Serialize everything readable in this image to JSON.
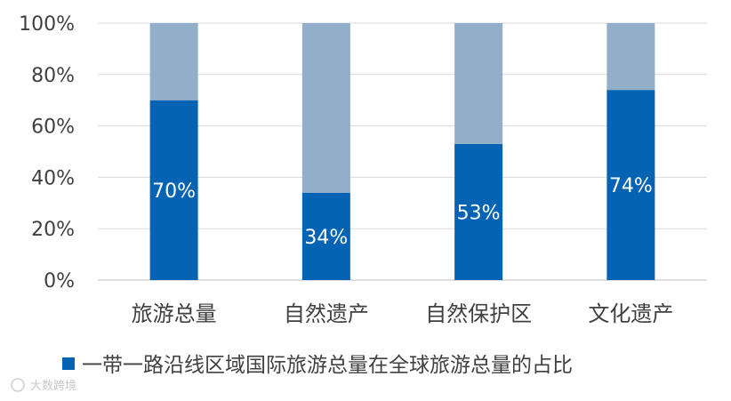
{
  "chart_data": {
    "type": "bar",
    "stacked": true,
    "percent_stacked": true,
    "categories": [
      "旅游总量",
      "自然遗产",
      "自然保护区",
      "文化遗产"
    ],
    "series": [
      {
        "name": "一带一路沿线区域国际旅游总量在全球旅游总量的占比",
        "values": [
          70,
          34,
          53,
          74
        ],
        "color": "#0563b4"
      },
      {
        "values": [
          30,
          66,
          47,
          26
        ],
        "color": "#93aec9"
      }
    ],
    "data_labels": [
      "70%",
      "34%",
      "53%",
      "74%"
    ],
    "y_ticks": [
      "0%",
      "20%",
      "40%",
      "60%",
      "80%",
      "100%"
    ],
    "ylim": [
      0,
      100
    ],
    "grid": true,
    "legend_position": "bottom"
  },
  "watermark": "大数跨境",
  "colors": {
    "grid": "#d9d9d9",
    "axis": "#bfbfbf"
  }
}
